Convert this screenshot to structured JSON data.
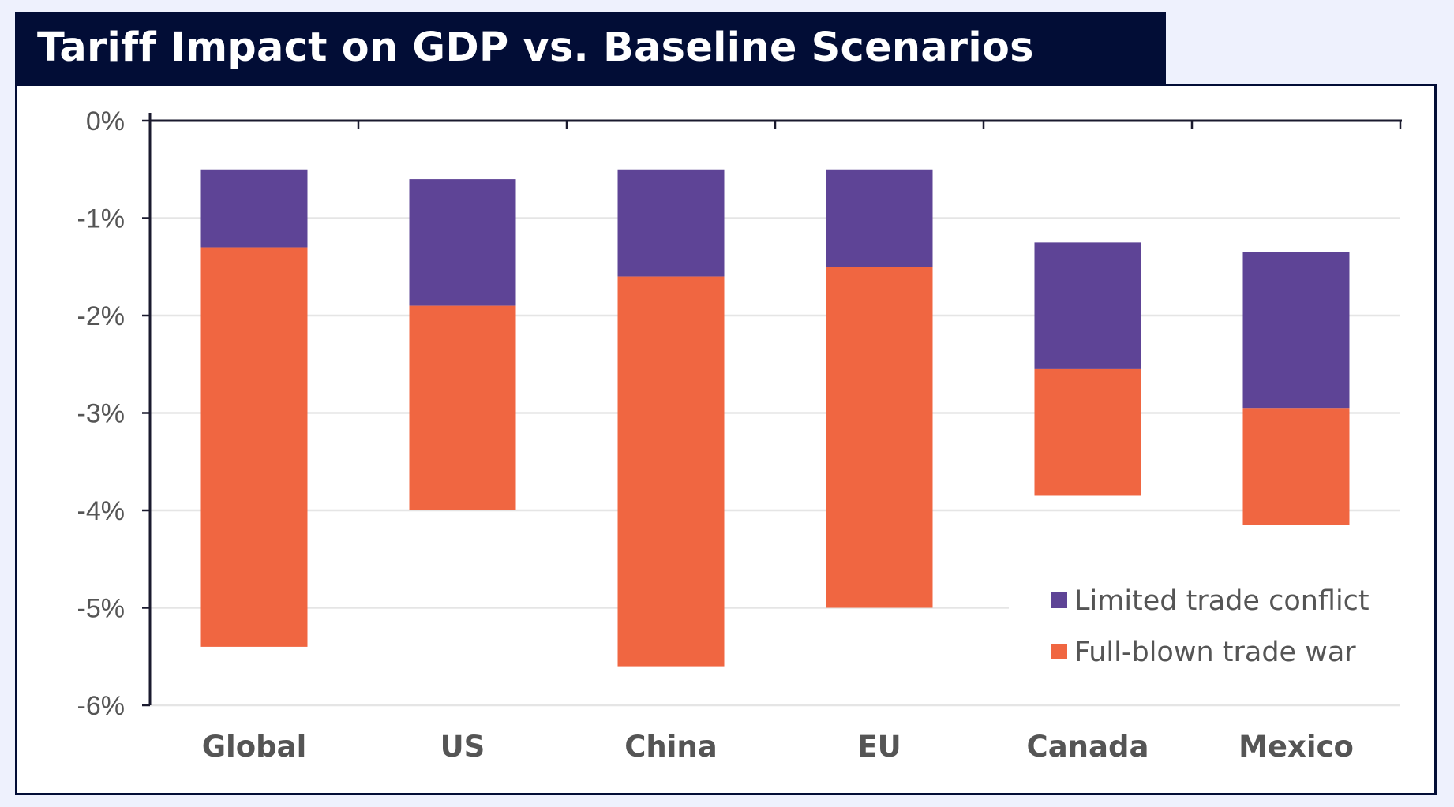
{
  "header": {
    "title": "Tariff Impact on GDP vs. Baseline Scenarios"
  },
  "colors": {
    "title_background": "#020d36",
    "limited": "#5e4496",
    "fullblown": "#f06641",
    "axis": "#1a1a2e",
    "grid": "#e5e5e5",
    "text": "#555555"
  },
  "chart_data": {
    "type": "bar",
    "title": "Tariff Impact on GDP vs. Baseline Scenarios",
    "categories": [
      "Global",
      "US",
      "China",
      "EU",
      "Canada",
      "Mexico"
    ],
    "ylim": [
      -6,
      0
    ],
    "yticks": [
      0,
      -1,
      -2,
      -3,
      -4,
      -5,
      -6
    ],
    "ytick_labels": [
      "0%",
      "-1%",
      "-2%",
      "-3%",
      "-4%",
      "-5%",
      "-6%"
    ],
    "grid": true,
    "legend_position": "bottom-right",
    "series": [
      {
        "name": "Limited trade conflict",
        "color": "#5e4496",
        "ranges": [
          [
            -0.5,
            -1.3
          ],
          [
            -0.6,
            -1.9
          ],
          [
            -0.5,
            -1.6
          ],
          [
            -0.5,
            -1.5
          ],
          [
            -1.25,
            -2.55
          ],
          [
            -1.35,
            -2.95
          ]
        ]
      },
      {
        "name": "Full-blown trade war",
        "color": "#f06641",
        "ranges": [
          [
            -1.3,
            -5.4
          ],
          [
            -1.9,
            -4.0
          ],
          [
            -1.6,
            -5.6
          ],
          [
            -1.5,
            -5.0
          ],
          [
            -2.55,
            -3.85
          ],
          [
            -2.95,
            -4.15
          ]
        ]
      }
    ]
  }
}
